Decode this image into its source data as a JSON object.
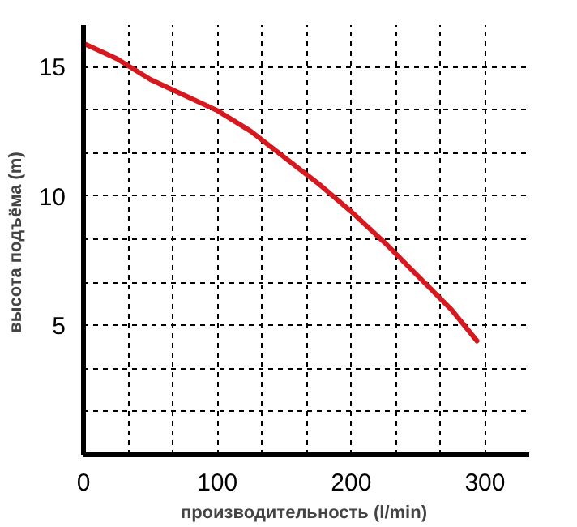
{
  "chart_data": {
    "type": "line",
    "xlabel": "производительность  (l/min)",
    "ylabel": "высота подъёма  (m)",
    "x": [
      0,
      25,
      50,
      75,
      100,
      125,
      150,
      175,
      200,
      225,
      250,
      275,
      294
    ],
    "series": [
      {
        "color": "#d7191f",
        "values": [
          15.9,
          15.3,
          14.5,
          13.9,
          13.3,
          12.5,
          11.5,
          10.5,
          9.4,
          8.2,
          6.9,
          5.6,
          4.4
        ]
      }
    ],
    "xlim": [
      0,
      333
    ],
    "ylim": [
      0,
      16.6
    ],
    "xticks": [
      0,
      {
        "value": 33.3,
        "label": null
      },
      {
        "value": 66.7,
        "label": null
      },
      100,
      {
        "value": 133.3,
        "label": null
      },
      {
        "value": 166.7,
        "label": null
      },
      200,
      {
        "value": 233.3,
        "label": null
      },
      {
        "value": 266.7,
        "label": null
      },
      300
    ],
    "yticks": [
      {
        "value": 1.67,
        "label": null
      },
      {
        "value": 3.33,
        "label": null
      },
      5,
      {
        "value": 6.67,
        "label": null
      },
      {
        "value": 8.33,
        "label": null
      },
      10,
      {
        "value": 11.67,
        "label": null
      },
      {
        "value": 13.33,
        "label": null
      },
      15
    ],
    "grid": true,
    "line_style": "solid",
    "marker": "none"
  }
}
